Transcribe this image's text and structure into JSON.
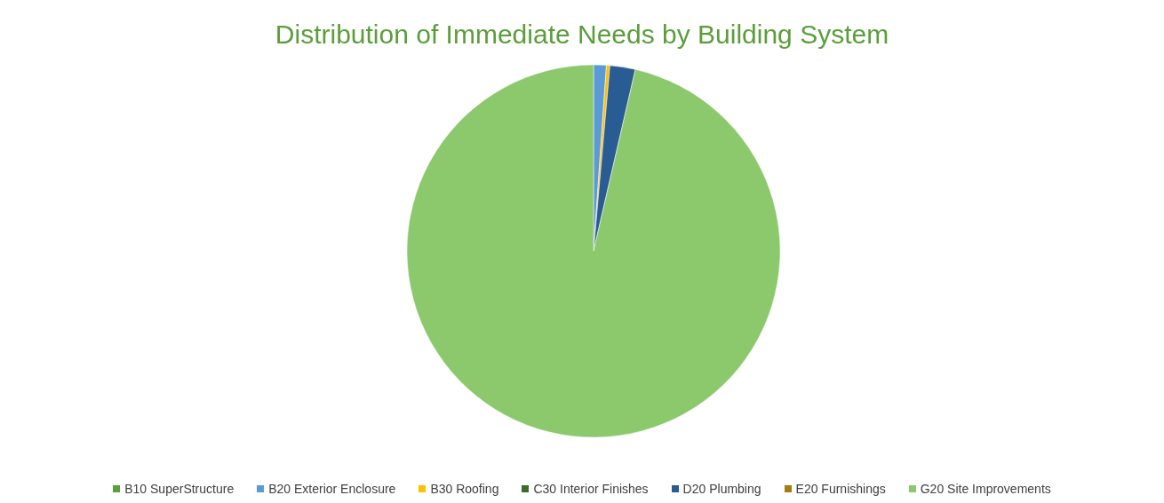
{
  "chart_data": {
    "type": "pie",
    "title": "Distribution of Immediate Needs by Building System",
    "categories": [
      "B10 SuperStructure",
      "B20 Exterior Enclosure",
      "B30 Roofing",
      "C30 Interior Finishes",
      "D20 Plumbing",
      "E20 Furnishings",
      "G20 Site Improvements"
    ],
    "values": [
      0,
      1.1,
      0.3,
      0,
      2.2,
      0,
      96.4
    ],
    "colors": [
      "#5c9e3a",
      "#5b9bd5",
      "#ffc000",
      "#3a6e26",
      "#2a5c94",
      "#a57c14",
      "#8cc86c"
    ],
    "legend": "bottom"
  }
}
